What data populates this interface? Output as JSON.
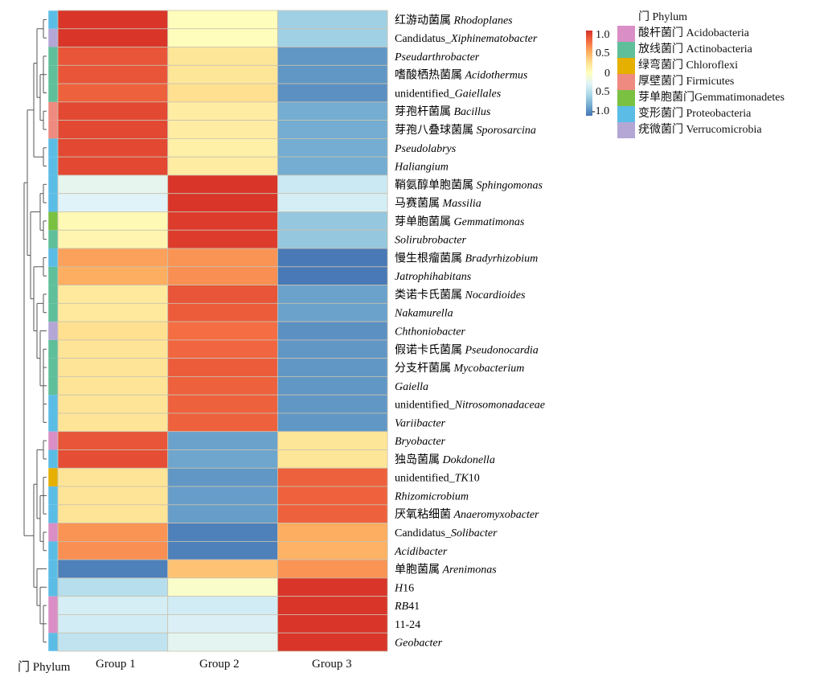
{
  "chart_data": {
    "type": "heatmap",
    "title": "",
    "columns": [
      "Group 1",
      "Group 2",
      "Group 3"
    ],
    "annotation_column_label": "门 Phylum",
    "color_scale": {
      "min": -1.0,
      "max": 1.0,
      "ticks": [
        "1.0",
        "0.5",
        "0",
        "0.5",
        "-1.0"
      ],
      "colors": [
        "#4575b4",
        "#74add1",
        "#abd9e9",
        "#e0f3f8",
        "#ffffbf",
        "#fee090",
        "#fdae61",
        "#f46d43",
        "#d73027"
      ]
    },
    "phylum_legend": {
      "title": "门 Phylum",
      "items": [
        {
          "key": "Acidobacteria",
          "label": "酸杆菌门 Acidobacteria",
          "color": "#d98fc6"
        },
        {
          "key": "Actinobacteria",
          "label": "放线菌门 Actinobacteria",
          "color": "#5fbf9a"
        },
        {
          "key": "Chloroflexi",
          "label": "绿弯菌门 Chloroflexi",
          "color": "#e5b000"
        },
        {
          "key": "Firmicutes",
          "label": "厚壁菌门 Firmicutes",
          "color": "#ef8a80"
        },
        {
          "key": "Gemmatimonadetes",
          "label": "芽单胞菌门Gemmatimonadetes",
          "color": "#7ac142"
        },
        {
          "key": "Proteobacteria",
          "label": "变形菌门 Proteobacteria",
          "color": "#5bbde6"
        },
        {
          "key": "Verrucomicrobia",
          "label": "疣微菌门 Verrucomicrobia",
          "color": "#b4a7d6"
        }
      ]
    },
    "rows": [
      {
        "cn": "红游动菌属 ",
        "latin": "Rhodoplanes",
        "prefix": "",
        "suffix": "",
        "phylum": "Proteobacteria",
        "values": [
          0.98,
          0.02,
          -0.55
        ]
      },
      {
        "cn": "",
        "latin": "Xiphinematobacter",
        "prefix": "Candidatus_",
        "suffix": "",
        "phylum": "Verrucomicrobia",
        "values": [
          0.98,
          0.02,
          -0.55
        ]
      },
      {
        "cn": "",
        "latin": "Pseudarthrobacter",
        "prefix": "",
        "suffix": "",
        "phylum": "Actinobacteria",
        "values": [
          0.85,
          0.2,
          -0.85
        ]
      },
      {
        "cn": "嗜酸栖热菌属 ",
        "latin": "Acidothermus",
        "prefix": "",
        "suffix": "",
        "phylum": "Actinobacteria",
        "values": [
          0.85,
          0.2,
          -0.85
        ]
      },
      {
        "cn": "",
        "latin": "Gaiellales",
        "prefix": "unidentified_",
        "suffix": "",
        "phylum": "Actinobacteria",
        "values": [
          0.8,
          0.25,
          -0.88
        ]
      },
      {
        "cn": "芽孢杆菌属 ",
        "latin": "Bacillus",
        "prefix": "",
        "suffix": "",
        "phylum": "Firmicutes",
        "values": [
          0.9,
          0.15,
          -0.75
        ]
      },
      {
        "cn": "芽孢八叠球菌属 ",
        "latin": "Sporosarcina",
        "prefix": "",
        "suffix": "",
        "phylum": "Firmicutes",
        "values": [
          0.9,
          0.15,
          -0.75
        ]
      },
      {
        "cn": "",
        "latin": "Pseudolabrys",
        "prefix": "",
        "suffix": "",
        "phylum": "Proteobacteria",
        "values": [
          0.9,
          0.12,
          -0.75
        ]
      },
      {
        "cn": "",
        "latin": "Haliangium",
        "prefix": "",
        "suffix": "",
        "phylum": "Proteobacteria",
        "values": [
          0.9,
          0.15,
          -0.75
        ]
      },
      {
        "cn": "鞘氨醇单胞菌属 ",
        "latin": "Sphingomonas",
        "prefix": "",
        "suffix": "",
        "phylum": "Proteobacteria",
        "values": [
          -0.2,
          0.98,
          -0.35
        ]
      },
      {
        "cn": "马赛菌属 ",
        "latin": "Massilia",
        "prefix": "",
        "suffix": "",
        "phylum": "Proteobacteria",
        "values": [
          -0.25,
          0.98,
          -0.3
        ]
      },
      {
        "cn": "芽单胞菌属 ",
        "latin": "Gemmatimonas",
        "prefix": "",
        "suffix": "",
        "phylum": "Gemmatimonadetes",
        "values": [
          0.05,
          0.95,
          -0.6
        ]
      },
      {
        "cn": "",
        "latin": "Solirubrobacter",
        "prefix": "",
        "suffix": "",
        "phylum": "Actinobacteria",
        "values": [
          0.08,
          0.95,
          -0.6
        ]
      },
      {
        "cn": "慢生根瘤菌属 ",
        "latin": "Bradyrhizobium",
        "prefix": "",
        "suffix": "",
        "phylum": "Proteobacteria",
        "values": [
          0.55,
          0.6,
          -0.98
        ]
      },
      {
        "cn": "",
        "latin": "Jatrophihabitans",
        "prefix": "",
        "suffix": "",
        "phylum": "Actinobacteria",
        "values": [
          0.5,
          0.62,
          -0.98
        ]
      },
      {
        "cn": "类诺卡氏菌属 ",
        "latin": "Nocardioides",
        "prefix": "",
        "suffix": "",
        "phylum": "Actinobacteria",
        "values": [
          0.18,
          0.85,
          -0.8
        ]
      },
      {
        "cn": "",
        "latin": "Nakamurella",
        "prefix": "",
        "suffix": "",
        "phylum": "Actinobacteria",
        "values": [
          0.18,
          0.82,
          -0.8
        ]
      },
      {
        "cn": "",
        "latin": "Chthoniobacter",
        "prefix": "",
        "suffix": "",
        "phylum": "Verrucomicrobia",
        "values": [
          0.25,
          0.75,
          -0.88
        ]
      },
      {
        "cn": "假诺卡氏菌属 ",
        "latin": "Pseudonocardia",
        "prefix": "",
        "suffix": "",
        "phylum": "Actinobacteria",
        "values": [
          0.22,
          0.78,
          -0.85
        ]
      },
      {
        "cn": "分支杆菌属 ",
        "latin": "Mycobacterium",
        "prefix": "",
        "suffix": "",
        "phylum": "Actinobacteria",
        "values": [
          0.22,
          0.82,
          -0.85
        ]
      },
      {
        "cn": "",
        "latin": "Gaiella",
        "prefix": "",
        "suffix": "",
        "phylum": "Actinobacteria",
        "values": [
          0.22,
          0.8,
          -0.85
        ]
      },
      {
        "cn": "",
        "latin": "Nitrosomonadaceae",
        "prefix": "unidentified_",
        "suffix": "",
        "phylum": "Proteobacteria",
        "values": [
          0.22,
          0.8,
          -0.85
        ]
      },
      {
        "cn": "",
        "latin": "Variibacter",
        "prefix": "",
        "suffix": "",
        "phylum": "Proteobacteria",
        "values": [
          0.22,
          0.8,
          -0.85
        ]
      },
      {
        "cn": "",
        "latin": "Bryobacter",
        "prefix": "",
        "suffix": "",
        "phylum": "Acidobacteria",
        "values": [
          0.85,
          -0.8,
          0.2
        ]
      },
      {
        "cn": "独岛菌属 ",
        "latin": "Dokdonella",
        "prefix": "",
        "suffix": "",
        "phylum": "Proteobacteria",
        "values": [
          0.88,
          -0.78,
          0.2
        ]
      },
      {
        "cn": "",
        "latin": "TK",
        "prefix": "unidentified_",
        "suffix": "10",
        "phylum": "Chloroflexi",
        "values": [
          0.22,
          -0.85,
          0.8
        ]
      },
      {
        "cn": "",
        "latin": "Rhizomicrobium",
        "prefix": "",
        "suffix": "",
        "phylum": "Proteobacteria",
        "values": [
          0.22,
          -0.82,
          0.8
        ]
      },
      {
        "cn": "厌氧粘细菌 ",
        "latin": "Anaeromyxobacter",
        "prefix": "",
        "suffix": "",
        "phylum": "Proteobacteria",
        "values": [
          0.22,
          -0.82,
          0.8
        ]
      },
      {
        "cn": "",
        "latin": "Solibacter",
        "prefix": "Candidatus_",
        "suffix": "",
        "phylum": "Acidobacteria",
        "values": [
          0.6,
          -0.95,
          0.5
        ]
      },
      {
        "cn": "",
        "latin": "Acidibacter",
        "prefix": "",
        "suffix": "",
        "phylum": "Proteobacteria",
        "values": [
          0.62,
          -0.95,
          0.48
        ]
      },
      {
        "cn": "单胞菌属 ",
        "latin": "Arenimonas",
        "prefix": "",
        "suffix": "",
        "phylum": "Proteobacteria",
        "values": [
          -0.95,
          0.4,
          0.6
        ]
      },
      {
        "cn": "",
        "latin": "H",
        "prefix": "",
        "suffix": "16",
        "phylum": "Proteobacteria",
        "values": [
          -0.45,
          -0.05,
          0.98
        ]
      },
      {
        "cn": "",
        "latin": "RB",
        "prefix": "",
        "suffix": "41",
        "phylum": "Acidobacteria",
        "values": [
          -0.3,
          -0.32,
          0.98
        ]
      },
      {
        "cn": "",
        "latin": "",
        "prefix": "11-24",
        "suffix": "",
        "phylum": "Acidobacteria",
        "values": [
          -0.32,
          -0.28,
          0.98
        ]
      },
      {
        "cn": "",
        "latin": "Geobacter",
        "prefix": "",
        "suffix": "",
        "phylum": "Proteobacteria",
        "values": [
          -0.4,
          -0.22,
          0.98
        ]
      }
    ],
    "row_dendrogram": "hierarchical clustering (left)",
    "legend_position": "top-right"
  }
}
